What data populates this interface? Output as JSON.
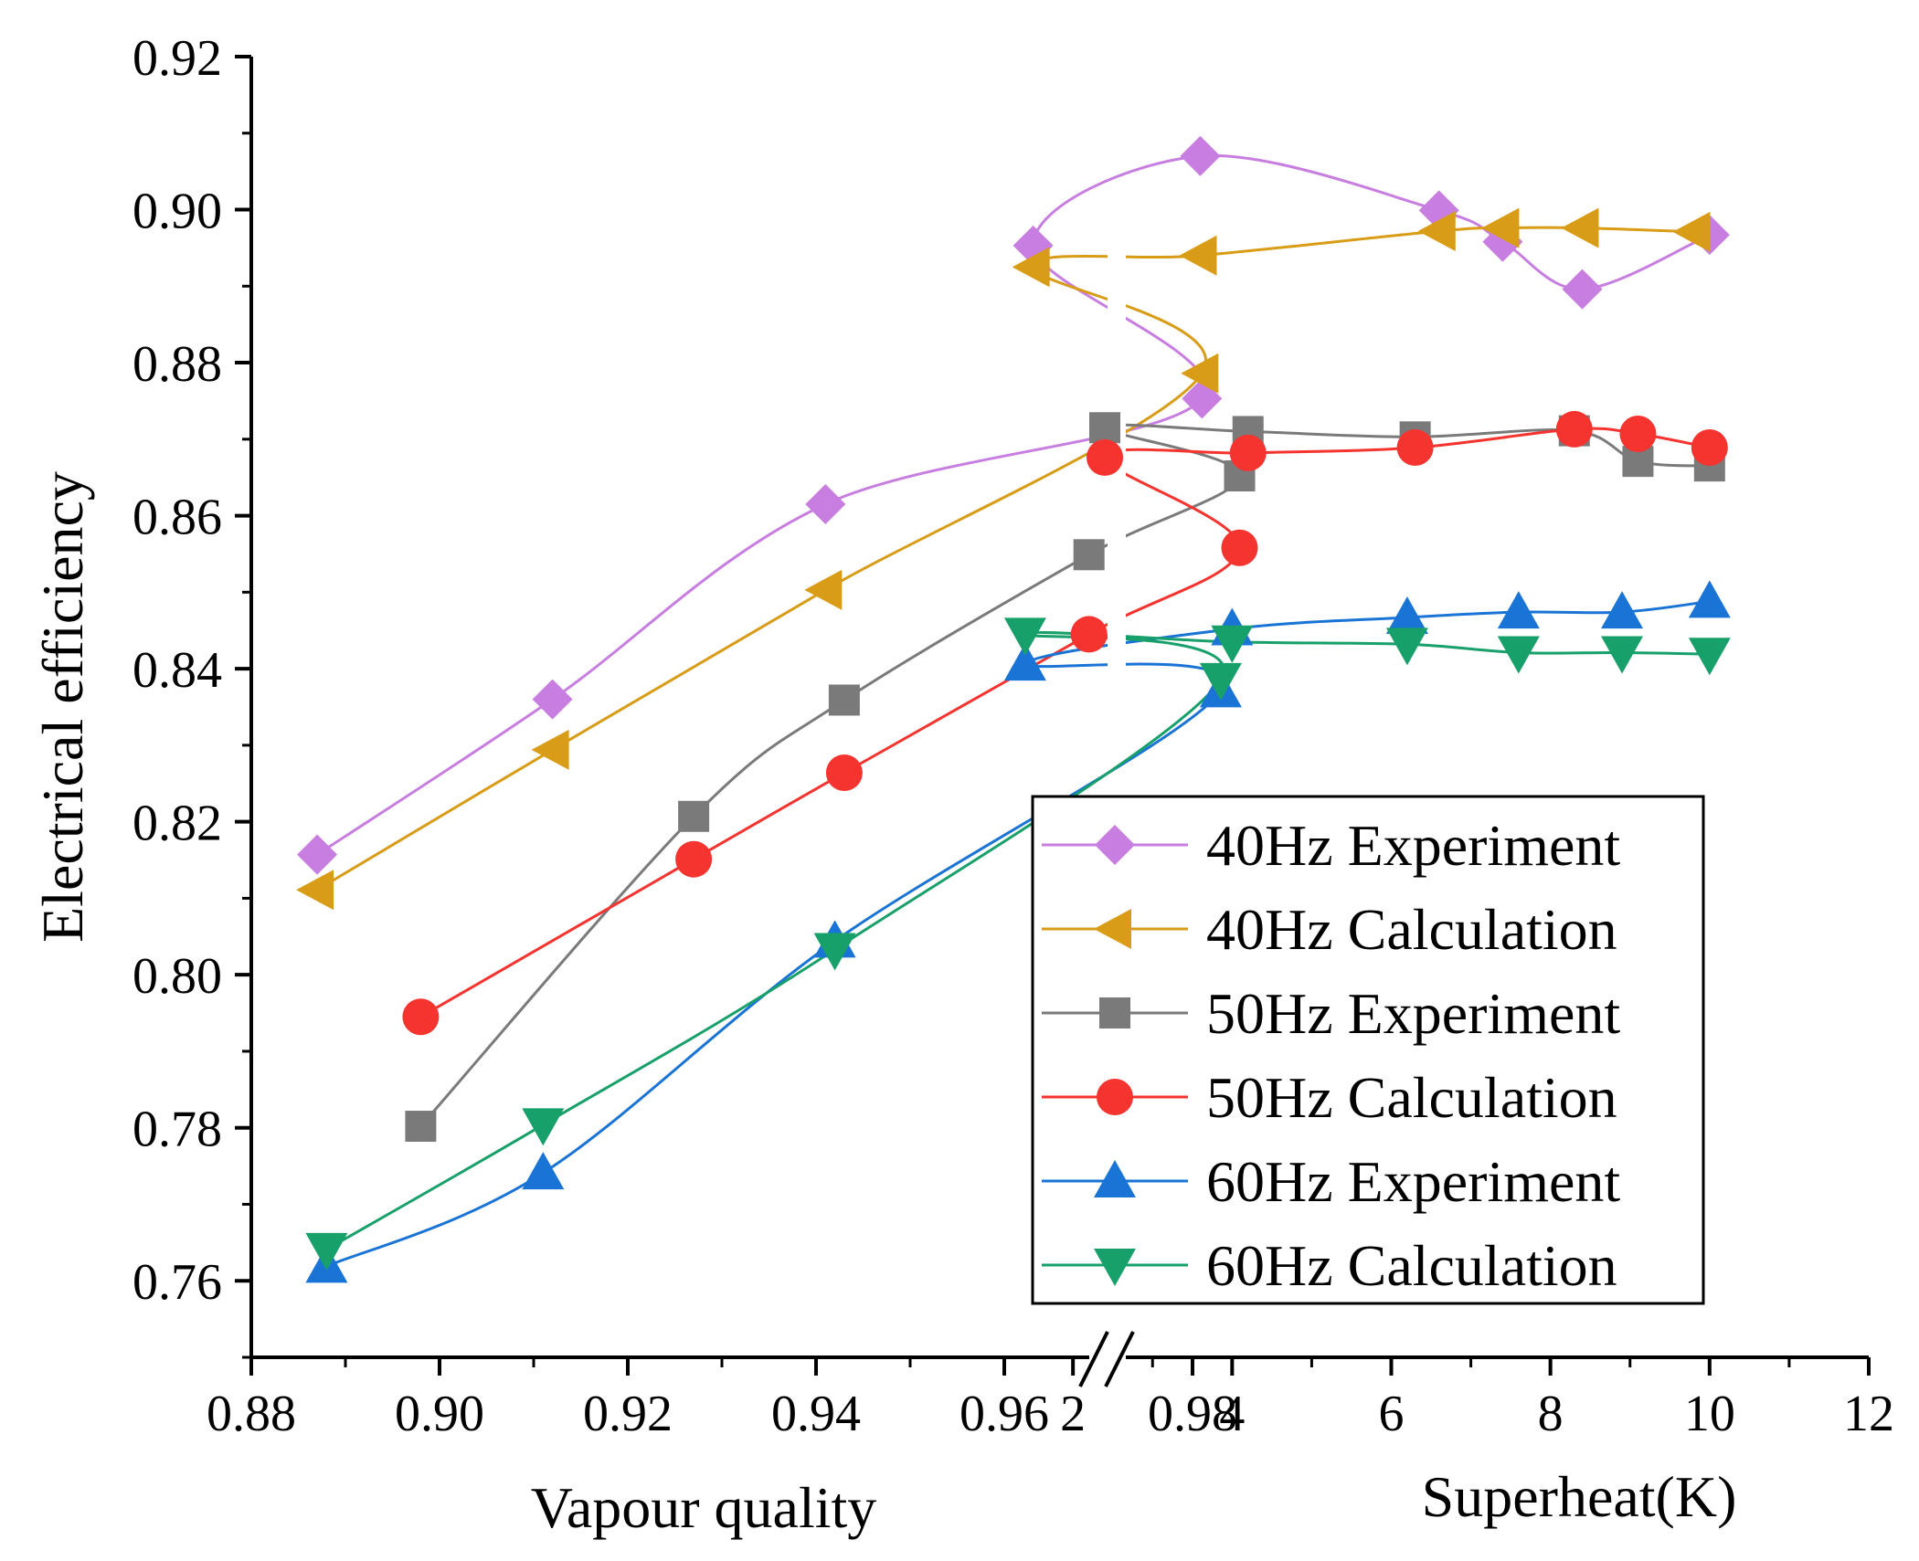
{
  "chart_data": {
    "type": "line",
    "ylabel": "Electrical efficiency",
    "xlabel_left": "Vapour quality",
    "xlabel_right": "Superheat(K)",
    "ylim": [
      0.75,
      0.92
    ],
    "yticks": [
      "0.76",
      "0.78",
      "0.80",
      "0.82",
      "0.84",
      "0.86",
      "0.88",
      "0.90",
      "0.92"
    ],
    "x_left_range": [
      0.88,
      1.0
    ],
    "x_left_ticks": [
      "0.88",
      "0.90",
      "0.92",
      "0.94",
      "0.96",
      "0.98"
    ],
    "x_right_range": [
      0,
      12
    ],
    "x_right_ticks": [
      "2",
      "4",
      "6",
      "8",
      "10",
      "12"
    ],
    "axis_break": true,
    "grid": false,
    "legend_position": "bottom-right",
    "series": [
      {
        "name": "40Hz Experiment",
        "color": "#c77ee0",
        "marker": "diamond",
        "quality": [
          [
            0.887,
            0.8157
          ],
          [
            0.912,
            0.836
          ],
          [
            0.941,
            0.8615
          ],
          [
            0.981,
            0.8753
          ]
        ],
        "superheat": [
          [
            1.5,
            0.8953
          ],
          [
            3.6,
            0.907
          ],
          [
            6.6,
            0.8999
          ],
          [
            7.4,
            0.8958
          ],
          [
            8.4,
            0.8896
          ],
          [
            10.0,
            0.8967
          ]
        ]
      },
      {
        "name": "40Hz Calculation",
        "color": "#d89c16",
        "marker": "triangle-left",
        "quality": [
          [
            0.887,
            0.8111
          ],
          [
            0.912,
            0.8294
          ],
          [
            0.941,
            0.8503
          ],
          [
            0.981,
            0.8786
          ]
        ],
        "superheat": [
          [
            1.5,
            0.8925
          ],
          [
            3.6,
            0.894
          ],
          [
            6.6,
            0.8972
          ],
          [
            7.4,
            0.8976
          ],
          [
            8.4,
            0.8976
          ],
          [
            9.8,
            0.8971
          ]
        ]
      },
      {
        "name": "50Hz Experiment",
        "color": "#7a7a7a",
        "marker": "square",
        "quality": [
          [
            0.898,
            0.7802
          ],
          [
            0.927,
            0.8207
          ],
          [
            0.943,
            0.8359
          ],
          [
            0.969,
            0.8549
          ],
          [
            0.985,
            0.8652
          ]
        ],
        "superheat": [
          [
            2.4,
            0.8715
          ],
          [
            4.2,
            0.871
          ],
          [
            6.3,
            0.8703
          ],
          [
            8.3,
            0.8711
          ],
          [
            9.1,
            0.8671
          ],
          [
            10.0,
            0.8665
          ]
        ]
      },
      {
        "name": "50Hz Calculation",
        "color": "#f5332f",
        "marker": "circle",
        "quality": [
          [
            0.898,
            0.7945
          ],
          [
            0.927,
            0.8151
          ],
          [
            0.943,
            0.8264
          ],
          [
            0.969,
            0.8445
          ],
          [
            0.985,
            0.8558
          ]
        ],
        "superheat": [
          [
            2.4,
            0.8676
          ],
          [
            4.2,
            0.8682
          ],
          [
            6.3,
            0.8689
          ],
          [
            8.3,
            0.8713
          ],
          [
            9.1,
            0.8707
          ],
          [
            10.0,
            0.8689
          ]
        ]
      },
      {
        "name": "60Hz Experiment",
        "color": "#1a74d6",
        "marker": "triangle-up",
        "quality": [
          [
            0.888,
            0.7619
          ],
          [
            0.911,
            0.7741
          ],
          [
            0.942,
            0.8044
          ],
          [
            0.983,
            0.8371
          ]
        ],
        "superheat": [
          [
            1.4,
            0.8406
          ],
          [
            4.0,
            0.8452
          ],
          [
            6.2,
            0.8467
          ],
          [
            7.6,
            0.8474
          ],
          [
            8.9,
            0.8474
          ],
          [
            10.0,
            0.8488
          ]
        ]
      },
      {
        "name": "60Hz Calculation",
        "color": "#18a06a",
        "marker": "triangle-down",
        "quality": [
          [
            0.888,
            0.7641
          ],
          [
            0.911,
            0.7804
          ],
          [
            0.942,
            0.8033
          ],
          [
            0.983,
            0.8386
          ]
        ],
        "superheat": [
          [
            1.4,
            0.8445
          ],
          [
            4.0,
            0.8435
          ],
          [
            6.2,
            0.8432
          ],
          [
            7.6,
            0.8421
          ],
          [
            8.9,
            0.8421
          ],
          [
            10.0,
            0.8419
          ]
        ]
      }
    ]
  }
}
